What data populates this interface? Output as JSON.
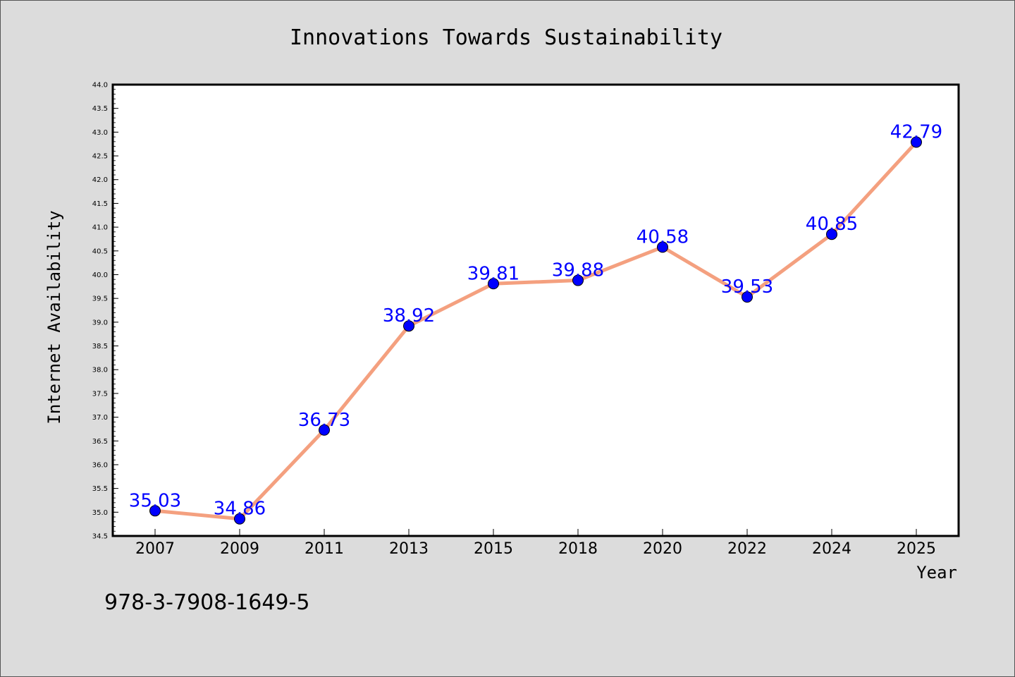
{
  "chart_data": {
    "type": "line",
    "title": "Innovations Towards Sustainability",
    "xlabel": "Year",
    "ylabel": "Internet Availability",
    "categories": [
      "2007",
      "2009",
      "2011",
      "2013",
      "2015",
      "2018",
      "2020",
      "2022",
      "2024",
      "2025"
    ],
    "series": [
      {
        "values": [
          35.03,
          34.86,
          36.73,
          38.92,
          39.81,
          39.88,
          40.58,
          39.53,
          40.85,
          42.79
        ],
        "line_color": "#f4a07f",
        "marker_color": "#0000ff"
      }
    ],
    "data_labels": [
      "35.03",
      "34.86",
      "36.73",
      "38.92",
      "39.81",
      "39.88",
      "40.58",
      "39.53",
      "40.85",
      "42.79"
    ],
    "ylim": [
      34.5,
      44.0
    ],
    "yticks": [
      "34.5",
      "35.0",
      "35.5",
      "36.0",
      "36.5",
      "37.0",
      "37.5",
      "38.0",
      "38.5",
      "39.0",
      "39.5",
      "40.0",
      "40.5",
      "41.0",
      "41.5",
      "42.0",
      "42.5",
      "43.0",
      "43.5",
      "44.0"
    ],
    "grid": false,
    "legend": "none",
    "label_color": "#0000ff",
    "background": "#dcdcdc",
    "plot_background": "#ffffff"
  },
  "footer_text": "978-3-7908-1649-5"
}
